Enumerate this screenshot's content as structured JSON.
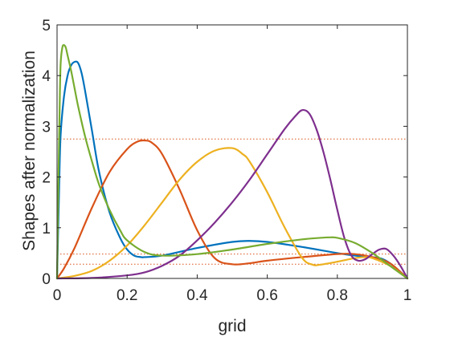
{
  "chart_data": {
    "type": "line",
    "title": "",
    "xlabel": "grid",
    "ylabel": "Shapes after normalization",
    "xlim": [
      0,
      1
    ],
    "ylim": [
      0,
      5
    ],
    "xticks": [
      0,
      0.2,
      0.4,
      0.6,
      0.8,
      1
    ],
    "xtick_labels": [
      "0",
      "0.2",
      "0.4",
      "0.6",
      "0.8",
      "1"
    ],
    "yticks": [
      0,
      1,
      2,
      3,
      4,
      5
    ],
    "ytick_labels": [
      "0",
      "1",
      "2",
      "3",
      "4",
      "5"
    ],
    "grid": false,
    "reference_lines": [
      {
        "y": 2.75,
        "color": "#D95319"
      },
      {
        "y": 0.48,
        "color": "#D95319"
      },
      {
        "y": 0.28,
        "color": "#D95319"
      }
    ],
    "series": [
      {
        "color": "#0072BD",
        "x": [
          0,
          0.005,
          0.01,
          0.02,
          0.03,
          0.04,
          0.05,
          0.06,
          0.07,
          0.08,
          0.1,
          0.12,
          0.15,
          0.18,
          0.2,
          0.22,
          0.24,
          0.25,
          0.3,
          0.4,
          0.5,
          0.55,
          0.6,
          0.7,
          0.8,
          0.85,
          0.9,
          0.93,
          0.96,
          1
        ],
        "y": [
          0,
          1.5,
          2.8,
          3.6,
          4.0,
          4.2,
          4.27,
          4.25,
          4.05,
          3.7,
          2.9,
          2.1,
          1.3,
          0.8,
          0.57,
          0.45,
          0.42,
          0.42,
          0.45,
          0.6,
          0.72,
          0.74,
          0.72,
          0.62,
          0.5,
          0.45,
          0.42,
          0.38,
          0.25,
          0
        ]
      },
      {
        "color": "#D95319",
        "x": [
          0,
          0.02,
          0.05,
          0.1,
          0.15,
          0.2,
          0.23,
          0.25,
          0.27,
          0.3,
          0.35,
          0.4,
          0.45,
          0.5,
          0.55,
          0.6,
          0.7,
          0.8,
          0.85,
          0.9,
          0.95,
          1
        ],
        "y": [
          0,
          0.2,
          0.6,
          1.4,
          2.1,
          2.55,
          2.7,
          2.72,
          2.68,
          2.45,
          1.75,
          0.95,
          0.4,
          0.28,
          0.3,
          0.35,
          0.42,
          0.48,
          0.48,
          0.42,
          0.3,
          0
        ]
      },
      {
        "color": "#EDB120",
        "x": [
          0,
          0.05,
          0.1,
          0.15,
          0.2,
          0.25,
          0.3,
          0.35,
          0.4,
          0.45,
          0.5,
          0.53,
          0.55,
          0.6,
          0.65,
          0.7,
          0.73,
          0.75,
          0.8,
          0.85,
          0.88,
          0.9,
          0.95,
          1
        ],
        "y": [
          0,
          0.05,
          0.15,
          0.35,
          0.65,
          1.05,
          1.5,
          1.95,
          2.3,
          2.52,
          2.57,
          2.45,
          2.3,
          1.7,
          1.0,
          0.4,
          0.27,
          0.27,
          0.33,
          0.4,
          0.42,
          0.4,
          0.25,
          0
        ]
      },
      {
        "color": "#7E2F8E",
        "x": [
          0,
          0.1,
          0.2,
          0.25,
          0.3,
          0.35,
          0.4,
          0.45,
          0.5,
          0.55,
          0.6,
          0.65,
          0.68,
          0.7,
          0.72,
          0.74,
          0.76,
          0.78,
          0.8,
          0.82,
          0.84,
          0.86,
          0.88,
          0.9,
          0.92,
          0.94,
          0.96,
          0.98,
          1
        ],
        "y": [
          0,
          0.01,
          0.06,
          0.12,
          0.25,
          0.45,
          0.75,
          1.1,
          1.5,
          1.95,
          2.45,
          2.95,
          3.2,
          3.32,
          3.25,
          2.95,
          2.5,
          1.95,
          1.35,
          0.8,
          0.45,
          0.35,
          0.38,
          0.48,
          0.57,
          0.58,
          0.45,
          0.25,
          0
        ]
      },
      {
        "color": "#77AC30",
        "x": [
          0,
          0.003,
          0.007,
          0.01,
          0.015,
          0.02,
          0.025,
          0.03,
          0.04,
          0.05,
          0.06,
          0.08,
          0.1,
          0.12,
          0.15,
          0.18,
          0.2,
          0.25,
          0.3,
          0.4,
          0.5,
          0.6,
          0.7,
          0.75,
          0.78,
          0.8,
          0.85,
          0.9,
          0.95,
          1
        ],
        "y": [
          0,
          1.5,
          3.2,
          4.2,
          4.55,
          4.6,
          4.55,
          4.4,
          4.1,
          3.75,
          3.4,
          2.8,
          2.3,
          1.85,
          1.35,
          0.95,
          0.75,
          0.52,
          0.45,
          0.48,
          0.57,
          0.68,
          0.77,
          0.8,
          0.81,
          0.8,
          0.7,
          0.5,
          0.25,
          0
        ]
      }
    ]
  }
}
